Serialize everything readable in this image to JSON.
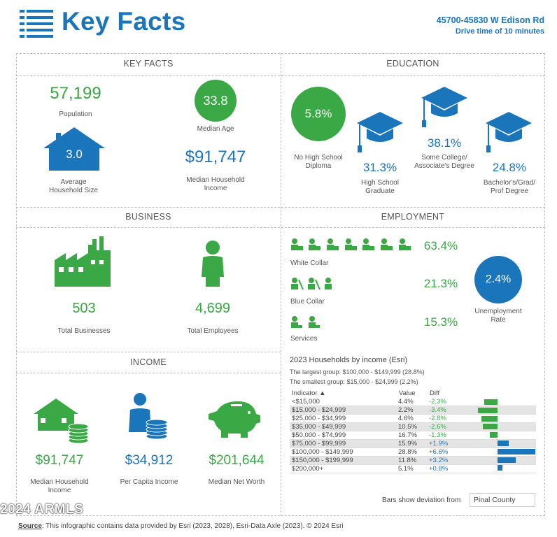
{
  "header": {
    "title": "Key Facts",
    "address": "45700-45830 W Edison Rd",
    "drive_time": "Drive time of 10 minutes"
  },
  "key_facts": {
    "title": "KEY FACTS",
    "population": {
      "value": "57,199",
      "label": "Population"
    },
    "median_age": {
      "value": "33.8",
      "label": "Median Age"
    },
    "household_size": {
      "value": "3.0",
      "label_1": "Average",
      "label_2": "Household Size"
    },
    "median_income": {
      "value": "$91,747",
      "label_1": "Median Household",
      "label_2": "Income"
    }
  },
  "education": {
    "title": "EDUCATION",
    "no_hs": {
      "value": "5.8%",
      "label_1": "No High School",
      "label_2": "Diploma"
    },
    "hs": {
      "value": "31.3%",
      "label_1": "High School",
      "label_2": "Graduate"
    },
    "college": {
      "value": "38.1%",
      "label_1": "Some College/",
      "label_2": "Associate's Degree"
    },
    "bachelor": {
      "value": "24.8%",
      "label_1": "Bachelor's/Grad/",
      "label_2": "Prof Degree"
    }
  },
  "business": {
    "title": "BUSINESS",
    "businesses": {
      "value": "503",
      "label": "Total Businesses"
    },
    "employees": {
      "value": "4,699",
      "label": "Total Employees"
    }
  },
  "employment": {
    "title": "EMPLOYMENT",
    "white_collar": {
      "value": "63.4%",
      "label": "White Collar"
    },
    "blue_collar": {
      "value": "21.3%",
      "label": "Blue Collar"
    },
    "services": {
      "value": "15.3%",
      "label": "Services"
    },
    "unemployment": {
      "value": "2.4%",
      "label_1": "Unemployment",
      "label_2": "Rate"
    }
  },
  "income": {
    "title": "INCOME",
    "median_household": {
      "value": "$91,747",
      "label_1": "Median Household",
      "label_2": "Income"
    },
    "per_capita": {
      "value": "$34,912",
      "label": "Per Capita Income"
    },
    "net_worth": {
      "value": "$201,644",
      "label": "Median Net Worth"
    }
  },
  "households": {
    "title": "2023 Households by income (Esri)",
    "largest": "The largest group: $100,000 - $149,999 (28.8%)",
    "smallest": "The smallest group: $15,000 - $24,999 (2.2%)",
    "col_indicator": "Indicator ▲",
    "col_value": "Value",
    "col_diff": "Diff",
    "rows": [
      {
        "indicator": "<$15,000",
        "value": "4.4%",
        "diff": "-2.3%",
        "d": -2.3
      },
      {
        "indicator": "$15,000 - $24,999",
        "value": "2.2%",
        "diff": "-3.4%",
        "d": -3.4
      },
      {
        "indicator": "$25,000 - $34,999",
        "value": "4.6%",
        "diff": "-2.8%",
        "d": -2.8
      },
      {
        "indicator": "$35,000 - $49,999",
        "value": "10.5%",
        "diff": "-2.6%",
        "d": -2.6
      },
      {
        "indicator": "$50,000 - $74,999",
        "value": "16.7%",
        "diff": "-1.3%",
        "d": -1.3
      },
      {
        "indicator": "$75,000 - $99,999",
        "value": "15.9%",
        "diff": "+1.9%",
        "d": 1.9
      },
      {
        "indicator": "$100,000 - $149,999",
        "value": "28.8%",
        "diff": "+6.6%",
        "d": 6.6
      },
      {
        "indicator": "$150,000 - $199,999",
        "value": "11.8%",
        "diff": "+3.2%",
        "d": 3.2
      },
      {
        "indicator": "$200,000+",
        "value": "5.1%",
        "diff": "+0.8%",
        "d": 0.8
      }
    ],
    "deviation_label": "Bars show deviation from",
    "deviation_area": "Pinal County"
  },
  "watermark": "2024 ARMLS",
  "source": {
    "label": "Source",
    "text": ": This infographic contains data provided by Esri (2023, 2028), Esri-Data Axle (2023).  © 2024 Esri"
  },
  "colors": {
    "green": "#3aa845",
    "blue": "#1b75bb",
    "pos_bar": "#1b75bb",
    "neg_bar": "#3aa845"
  }
}
